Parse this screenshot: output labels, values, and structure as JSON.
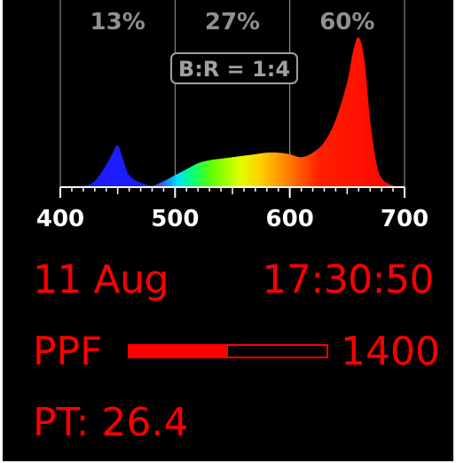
{
  "colors": {
    "background": "#000000",
    "text": "#ff0000",
    "grid": "#a0a0a0",
    "label_gray": "#909090",
    "axis_white": "#ffffff"
  },
  "chart_data": {
    "type": "area",
    "x_ticks": [
      "400",
      "500",
      "600",
      "700"
    ],
    "xlim": [
      400,
      700
    ],
    "band_labels": [
      {
        "label": "13%",
        "from": 400,
        "to": 500
      },
      {
        "label": "27%",
        "from": 500,
        "to": 600
      },
      {
        "label": "60%",
        "from": 600,
        "to": 700
      }
    ],
    "ratio_label": "B:R = 1:4",
    "x": [
      400,
      420,
      430,
      440,
      445,
      450,
      455,
      460,
      470,
      480,
      490,
      500,
      510,
      520,
      530,
      540,
      550,
      560,
      570,
      580,
      590,
      600,
      610,
      620,
      630,
      640,
      650,
      655,
      660,
      665,
      670,
      675,
      680,
      690,
      700
    ],
    "y": [
      0,
      0.01,
      0.04,
      0.15,
      0.22,
      0.28,
      0.18,
      0.08,
      0.03,
      0.01,
      0.04,
      0.08,
      0.12,
      0.16,
      0.18,
      0.19,
      0.2,
      0.21,
      0.22,
      0.23,
      0.23,
      0.22,
      0.2,
      0.23,
      0.3,
      0.45,
      0.7,
      0.9,
      1.0,
      0.85,
      0.45,
      0.18,
      0.06,
      0.01,
      0
    ]
  },
  "status": {
    "date": "11 Aug",
    "time": "17:30:50",
    "ppf_label": "PPF",
    "ppf_value": "1400",
    "ppf_fraction": 0.5,
    "pt": "PT: 26.4"
  }
}
